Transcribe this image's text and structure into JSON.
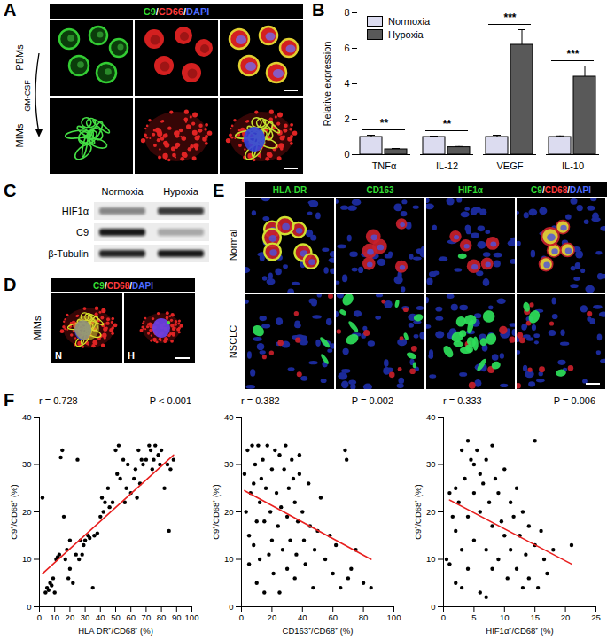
{
  "panel_labels": [
    "A",
    "B",
    "C",
    "D",
    "E",
    "F"
  ],
  "channel_colors": [
    "#33dd33",
    "#ff3b3b",
    "#4d6bff"
  ],
  "panel_a": {
    "header": "C9/CD66/DAPI",
    "rows": [
      "PBMs",
      "MIMs"
    ],
    "arrow_label": "GM-CSF"
  },
  "panel_c": {
    "columns": [
      "Normoxia",
      "Hypoxia"
    ],
    "rows": [
      {
        "label": "HIF1α",
        "intensity": [
          0.45,
          0.8
        ]
      },
      {
        "label": "C9",
        "intensity": [
          0.95,
          0.3
        ]
      },
      {
        "label": "β-Tubulin",
        "intensity": [
          0.9,
          0.95
        ]
      }
    ]
  },
  "panel_d": {
    "header": "C9/CD68/DAPI",
    "row": "MIMs",
    "images": [
      "N",
      "H"
    ]
  },
  "panel_e": {
    "columns": [
      "HLA-DR",
      "CD163",
      "HIF1α",
      "C9/CD68/DAPI"
    ],
    "rows": [
      "Normal",
      "NSCLC"
    ]
  },
  "chart_data": [
    {
      "type": "bar",
      "y_label": "Relative expression",
      "categories": [
        "TNFα",
        "IL-12",
        "VEGF",
        "IL-10"
      ],
      "ylim": [
        0,
        8
      ],
      "yticks": [
        0,
        2,
        4,
        6,
        8
      ],
      "legend": "top-left",
      "series": [
        {
          "name": "Normoxia",
          "color": "#dcdcf0",
          "values": [
            1,
            1,
            1,
            1
          ],
          "errors": [
            0.1,
            0.05,
            0.1,
            0.06
          ]
        },
        {
          "name": "Hypoxia",
          "color": "#595959",
          "values": [
            0.3,
            0.42,
            6.2,
            4.4
          ],
          "errors": [
            0.05,
            0.04,
            0.85,
            0.6
          ]
        }
      ],
      "annotations": [
        {
          "category": "TNFα",
          "text": "**"
        },
        {
          "category": "IL-12",
          "text": "**"
        },
        {
          "category": "VEGF",
          "text": "***"
        },
        {
          "category": "IL-10",
          "text": "***"
        }
      ]
    },
    {
      "type": "scatter",
      "x_label": "HLA DR⁺/CD68⁺ (%)",
      "y_label": "C9⁺/CD68⁺ (%)",
      "xlim": [
        0,
        100
      ],
      "xticks": [
        0,
        10,
        20,
        30,
        40,
        50,
        60,
        70,
        80,
        90,
        100
      ],
      "ylim": [
        0,
        40
      ],
      "yticks": [
        0,
        10,
        20,
        30,
        40
      ],
      "annotations": [
        "r = 0.728",
        "P < 0.001"
      ],
      "series": [
        {
          "type": "scatter",
          "color": "#000000",
          "marker": "circle",
          "x": [
            2,
            4,
            5,
            6,
            7,
            8,
            9,
            10,
            11,
            12,
            13,
            14,
            15,
            16,
            17,
            18,
            19,
            20,
            20,
            22,
            24,
            25,
            26,
            27,
            28,
            29,
            30,
            32,
            33,
            35,
            36,
            38,
            40,
            41,
            42,
            43,
            45,
            46,
            48,
            50,
            51,
            52,
            53,
            55,
            56,
            57,
            58,
            60,
            62,
            63,
            64,
            65,
            66,
            67,
            68,
            70,
            72,
            73,
            74,
            75,
            76,
            78,
            79,
            80,
            82,
            84,
            85,
            86,
            88
          ],
          "values": [
            23,
            3,
            4,
            3.5,
            5,
            4.5,
            6,
            3,
            10,
            10.5,
            11,
            31.5,
            33,
            19,
            10,
            12,
            6,
            14,
            8,
            5,
            11,
            31,
            10,
            14,
            11,
            13,
            14,
            15,
            14.5,
            4,
            15,
            15.5,
            19,
            23,
            20,
            22,
            25,
            21,
            22,
            33,
            28,
            34,
            27,
            31,
            22,
            25,
            30,
            24,
            27,
            29,
            23,
            33,
            26,
            31,
            30,
            31,
            34,
            33,
            29,
            31,
            34,
            32,
            30,
            33,
            25,
            30,
            16,
            29,
            31
          ]
        },
        {
          "type": "line",
          "color": "#e8201f",
          "x": [
            2,
            88
          ],
          "values": [
            7,
            32
          ]
        }
      ]
    },
    {
      "type": "scatter",
      "x_label": "CD163⁺/CD68⁺ (%)",
      "y_label": "C9⁺/CD68⁺ (%)",
      "xlim": [
        0,
        100
      ],
      "xticks": [
        0,
        20,
        40,
        60,
        80,
        100
      ],
      "ylim": [
        0,
        40
      ],
      "yticks": [
        0,
        10,
        20,
        30,
        40
      ],
      "annotations": [
        "r = 0.382",
        "P = 0.002"
      ],
      "series": [
        {
          "type": "scatter",
          "color": "#000000",
          "marker": "circle",
          "x": [
            2,
            3,
            4,
            5,
            5,
            6,
            7,
            8,
            8,
            9,
            10,
            10,
            11,
            12,
            12,
            13,
            14,
            15,
            15,
            16,
            17,
            18,
            19,
            20,
            20,
            21,
            22,
            23,
            24,
            25,
            25,
            26,
            27,
            28,
            29,
            30,
            30,
            31,
            32,
            33,
            34,
            35,
            35,
            36,
            37,
            38,
            38,
            40,
            41,
            42,
            44,
            45,
            47,
            48,
            50,
            52,
            55,
            58,
            60,
            62,
            65,
            68,
            69,
            70,
            72,
            75,
            80,
            85
          ],
          "values": [
            28,
            20,
            33,
            15,
            9,
            24,
            34,
            13,
            26,
            30,
            18,
            5,
            34,
            22,
            10,
            27,
            31,
            18,
            3,
            25,
            34,
            11,
            20,
            29,
            14,
            7,
            33,
            24,
            17,
            32,
            3,
            21,
            12,
            29,
            34,
            19,
            8,
            25,
            14,
            31,
            27,
            22,
            6,
            11,
            18,
            28,
            32,
            20,
            14,
            9,
            26,
            17,
            4,
            12,
            16,
            23,
            10,
            15,
            7,
            13,
            4,
            33,
            31,
            6,
            8,
            12,
            5,
            4
          ]
        },
        {
          "type": "line",
          "color": "#e8201f",
          "x": [
            2,
            85
          ],
          "values": [
            24.5,
            10
          ]
        }
      ]
    },
    {
      "type": "scatter",
      "x_label": "HIF1α⁺/CD68⁺ (%)",
      "y_label": "C9⁺/CD68⁺ (%)",
      "xlim": [
        0,
        25
      ],
      "xticks": [
        0,
        5,
        10,
        15,
        20,
        25
      ],
      "ylim": [
        0,
        40
      ],
      "yticks": [
        0,
        10,
        20,
        30,
        40
      ],
      "annotations": [
        "r = 0.333",
        "P = 0.006"
      ],
      "series": [
        {
          "type": "scatter",
          "color": "#000000",
          "marker": "circle",
          "x": [
            0.5,
            1,
            1,
            1.5,
            2,
            2,
            2.5,
            3,
            3,
            3.5,
            4,
            4,
            4,
            4.5,
            5,
            5,
            5.5,
            6,
            6,
            6,
            6.5,
            7,
            7,
            7.5,
            8,
            8,
            8.5,
            9,
            9,
            9.5,
            10,
            10,
            10.5,
            11,
            11,
            11.5,
            12,
            12,
            12.5,
            13,
            13,
            13.5,
            14,
            14,
            15,
            15,
            15.5,
            16,
            16.5,
            17,
            18,
            21,
            3,
            5,
            7,
            2,
            8
          ],
          "values": [
            10,
            24,
            9,
            19,
            16,
            5,
            22,
            33,
            12,
            27,
            35,
            19,
            8,
            31,
            24,
            14,
            33,
            28,
            20,
            3,
            26,
            12,
            31,
            22,
            17,
            34,
            27,
            10,
            24,
            18,
            15,
            29,
            6,
            22,
            12,
            19,
            25,
            8,
            15,
            20,
            4,
            11,
            17,
            6,
            13,
            35,
            4,
            16,
            10,
            7,
            12,
            13,
            4,
            30,
            2,
            25,
            8
          ]
        },
        {
          "type": "line",
          "color": "#e8201f",
          "x": [
            1,
            21
          ],
          "values": [
            22.5,
            9
          ]
        }
      ]
    }
  ]
}
